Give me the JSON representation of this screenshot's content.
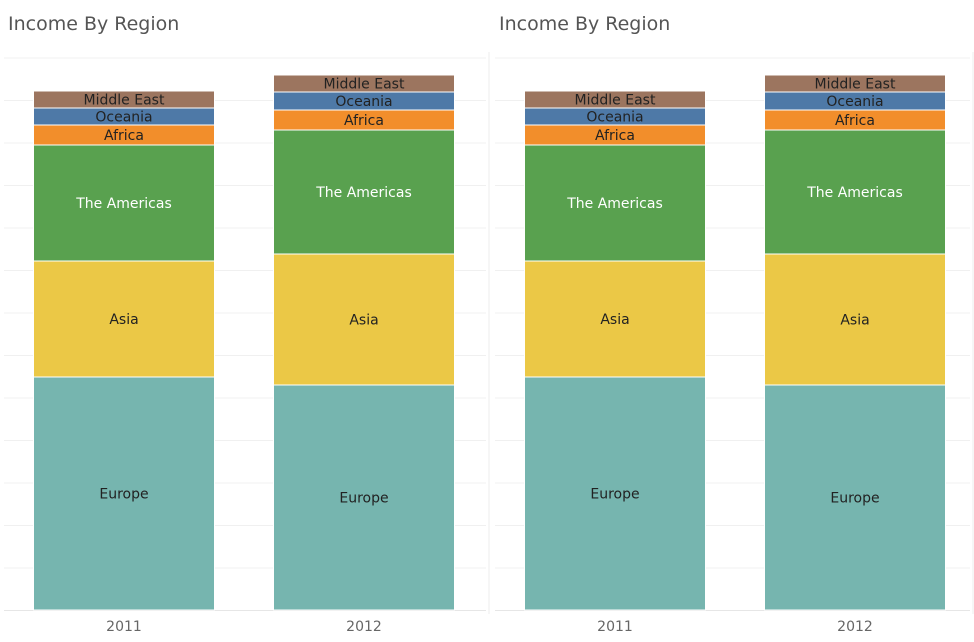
{
  "panels": [
    {
      "title": "Income By Region"
    },
    {
      "title": "Income By Region"
    }
  ],
  "colors": {
    "Europe": "#76B5AF",
    "Asia": "#EBC846",
    "The Americas": "#59A14F",
    "Africa": "#F28E2B",
    "Oceania": "#4E79A7",
    "Middle East": "#9C755F"
  },
  "label_colors": {
    "Europe": "#222222",
    "Asia": "#222222",
    "The Americas": "#ffffff",
    "Africa": "#222222",
    "Oceania": "#222222",
    "Middle East": "#222222"
  },
  "chart_data": [
    {
      "type": "bar",
      "stacked": true,
      "title": "Income By Region",
      "categories": [
        "2011",
        "2012"
      ],
      "series": [
        {
          "name": "Europe",
          "values": [
            233,
            225
          ]
        },
        {
          "name": "Asia",
          "values": [
            116,
            131
          ]
        },
        {
          "name": "The Americas",
          "values": [
            116,
            124
          ]
        },
        {
          "name": "Africa",
          "values": [
            20,
            20
          ]
        },
        {
          "name": "Oceania",
          "values": [
            17,
            18
          ]
        },
        {
          "name": "Middle East",
          "values": [
            17,
            17
          ]
        }
      ],
      "ylim": [
        0,
        552
      ],
      "grid": true
    },
    {
      "type": "bar",
      "stacked": true,
      "title": "Income By Region",
      "categories": [
        "2011",
        "2012"
      ],
      "series": [
        {
          "name": "Europe",
          "values": [
            233,
            225
          ]
        },
        {
          "name": "Asia",
          "values": [
            116,
            131
          ]
        },
        {
          "name": "The Americas",
          "values": [
            116,
            124
          ]
        },
        {
          "name": "Africa",
          "values": [
            20,
            20
          ]
        },
        {
          "name": "Oceania",
          "values": [
            17,
            18
          ]
        },
        {
          "name": "Middle East",
          "values": [
            17,
            17
          ]
        }
      ],
      "ylim": [
        0,
        552
      ],
      "grid": true
    }
  ]
}
